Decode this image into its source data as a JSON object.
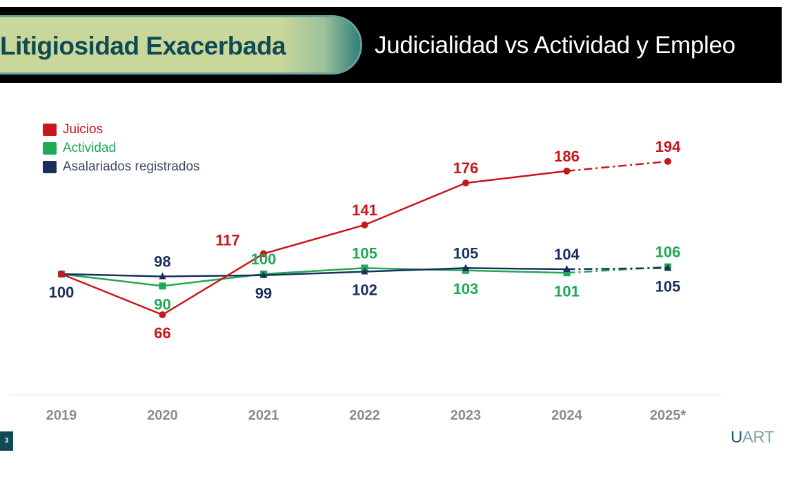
{
  "header": {
    "section_title": "Litigiosidad Exacerbada",
    "subtitle": "Judicialidad vs Actividad y Empleo"
  },
  "footer": {
    "page_number": "3",
    "logo_first": "U",
    "logo_rest": "ART"
  },
  "colors": {
    "juicios": "#c8161d",
    "actividad": "#1fa855",
    "asalariados": "#1b2f5e",
    "axis_label": "#8c8c8c",
    "brand_dark": "#0f4a55"
  },
  "chart_data": {
    "type": "line",
    "title": "Judicialidad vs Actividad y Empleo",
    "xlabel": "",
    "ylabel": "",
    "x": [
      "2019",
      "2020",
      "2021",
      "2022",
      "2023",
      "2024",
      "2025*"
    ],
    "ylim": [
      40,
      210
    ],
    "grid": false,
    "legend_position": "top-left",
    "projected_from_index": 5,
    "series": [
      {
        "name": "Juicios",
        "color": "#c8161d",
        "marker": "circle",
        "values": [
          100,
          66,
          117,
          141,
          176,
          186,
          194
        ],
        "labels": [
          "",
          "66",
          "117",
          "141",
          "176",
          "186",
          "194"
        ],
        "label_pos": [
          "",
          "below",
          "above-left",
          "above",
          "above",
          "above",
          "above"
        ]
      },
      {
        "name": "Actividad",
        "color": "#1fa855",
        "marker": "square",
        "values": [
          100,
          90,
          100,
          105,
          103,
          101,
          106
        ],
        "labels": [
          "",
          "90",
          "100",
          "105",
          "103",
          "101",
          "106"
        ],
        "label_pos": [
          "",
          "below",
          "above",
          "above",
          "below",
          "below",
          "above"
        ]
      },
      {
        "name": "Asalariados registrados",
        "color": "#1b2f5e",
        "marker": "triangle",
        "values": [
          100,
          98,
          99,
          102,
          105,
          104,
          105
        ],
        "labels": [
          "100",
          "98",
          "99",
          "102",
          "105",
          "104",
          "105"
        ],
        "label_pos": [
          "below",
          "above",
          "below",
          "below",
          "above",
          "above",
          "below"
        ]
      }
    ]
  }
}
